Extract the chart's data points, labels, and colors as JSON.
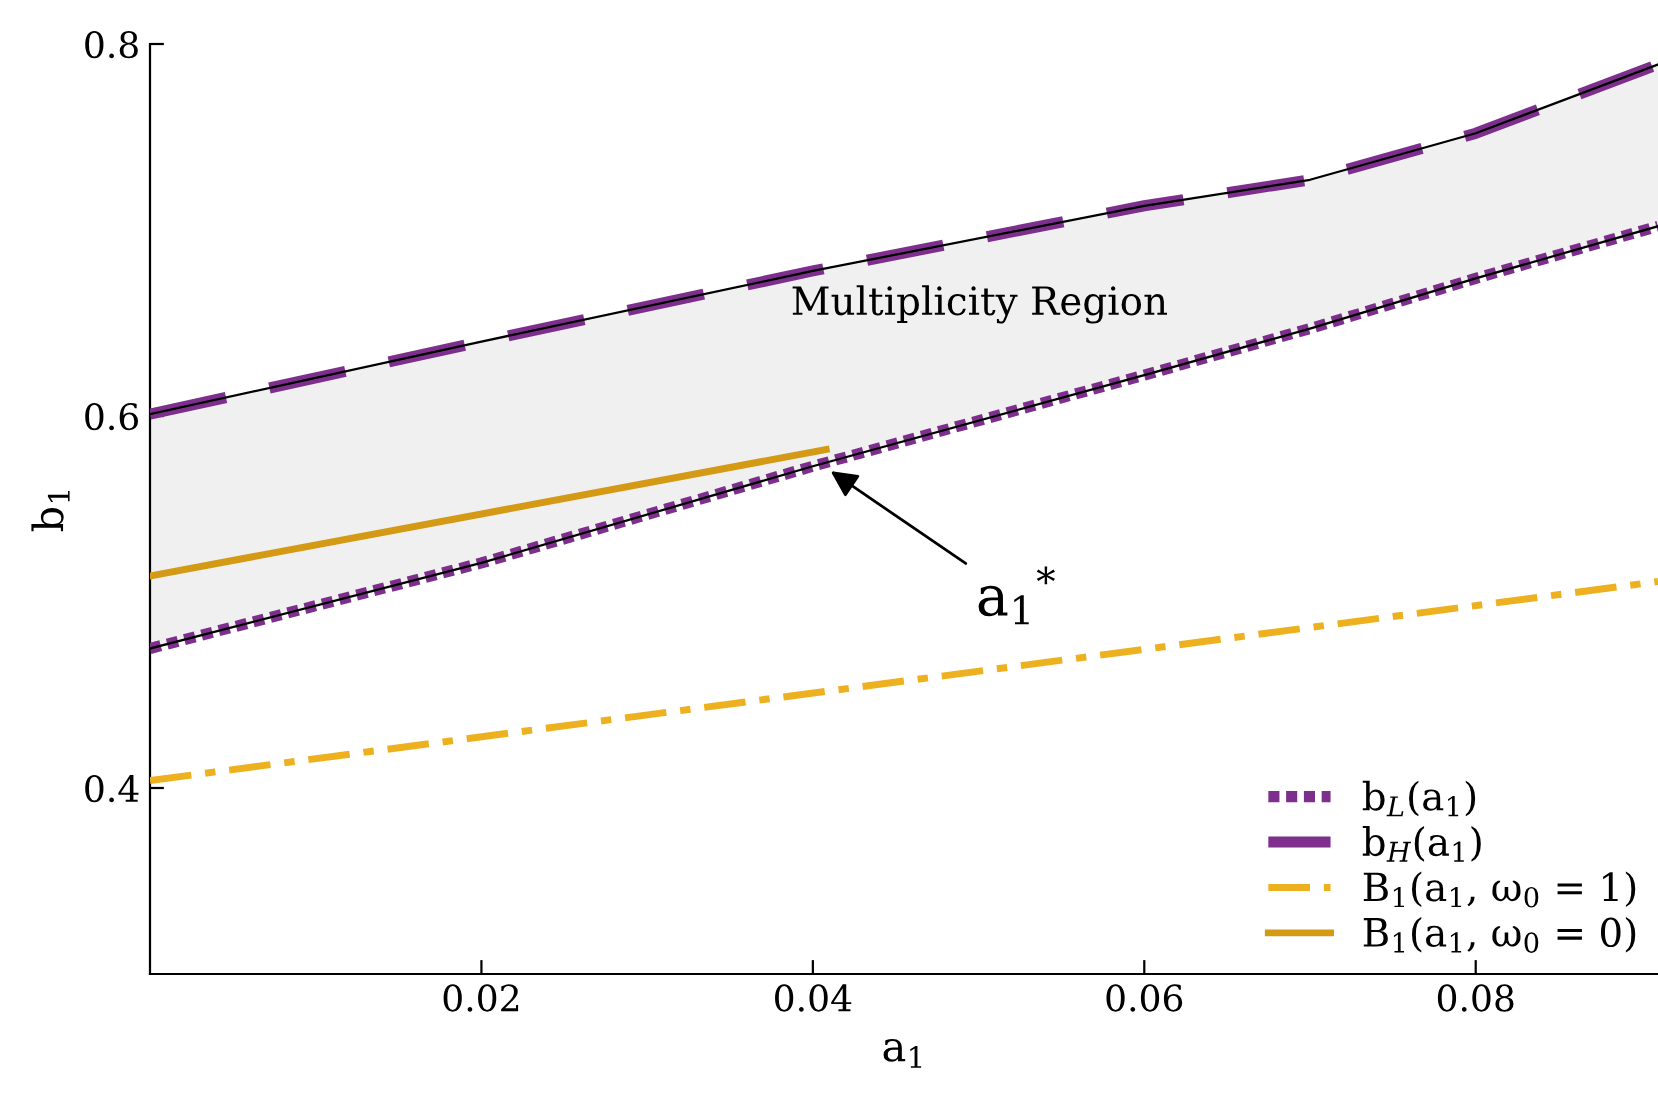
{
  "chart_data": {
    "type": "line",
    "xlabel": "a$_{1}$",
    "ylabel": "b$_{1}$",
    "xlim": [
      0,
      0.091
    ],
    "ylim": [
      0.3,
      0.8
    ],
    "xticks": [
      0.02,
      0.04,
      0.06,
      0.08
    ],
    "yticks": [
      0.4,
      0.6,
      0.8
    ],
    "grid": false,
    "legend": "bottom right",
    "series": [
      {
        "name": "b$_{L}$(a$_{1}$)",
        "color": "#7e2f8e",
        "line_style": "dotted",
        "x": [
          0,
          0.02,
          0.04,
          0.06,
          0.07,
          0.08,
          0.091
        ],
        "values": [
          0.475,
          0.521,
          0.573,
          0.622,
          0.647,
          0.674,
          0.702
        ]
      },
      {
        "name": "b$_{H}$(a$_{1}$)",
        "color": "#7e2f8e",
        "line_style": "dashed",
        "x": [
          0,
          0.02,
          0.04,
          0.06,
          0.07,
          0.08,
          0.091
        ],
        "values": [
          0.601,
          0.64,
          0.678,
          0.713,
          0.727,
          0.752,
          0.789
        ],
        "upper": [
          0.601,
          0.64,
          0.678,
          0.713,
          0.727,
          0.752,
          0.789
        ],
        "lower": [
          0.475,
          0.521,
          0.573,
          0.622,
          0.647,
          0.674,
          0.702
        ]
      },
      {
        "name": "B$_{1}$(a$_{1}$, ω$_{0}$ = 1)",
        "color": "#edb120",
        "line_style": "dashdot",
        "x": [
          0,
          0.091
        ],
        "values": [
          0.404,
          0.511
        ]
      },
      {
        "name": "B$_{1}$(a$_{1}$, ω$_{0}$ = 0)",
        "color": "#d49a16",
        "line_style": "solid",
        "x": [
          0,
          0.0408
        ],
        "values": [
          0.514,
          0.582
        ]
      }
    ],
    "annotations": [
      "Multiplicity Region",
      {
        "text": "a$_{1}$$^{*}$",
        "x": 0.0408,
        "y": 0.572
      }
    ]
  }
}
